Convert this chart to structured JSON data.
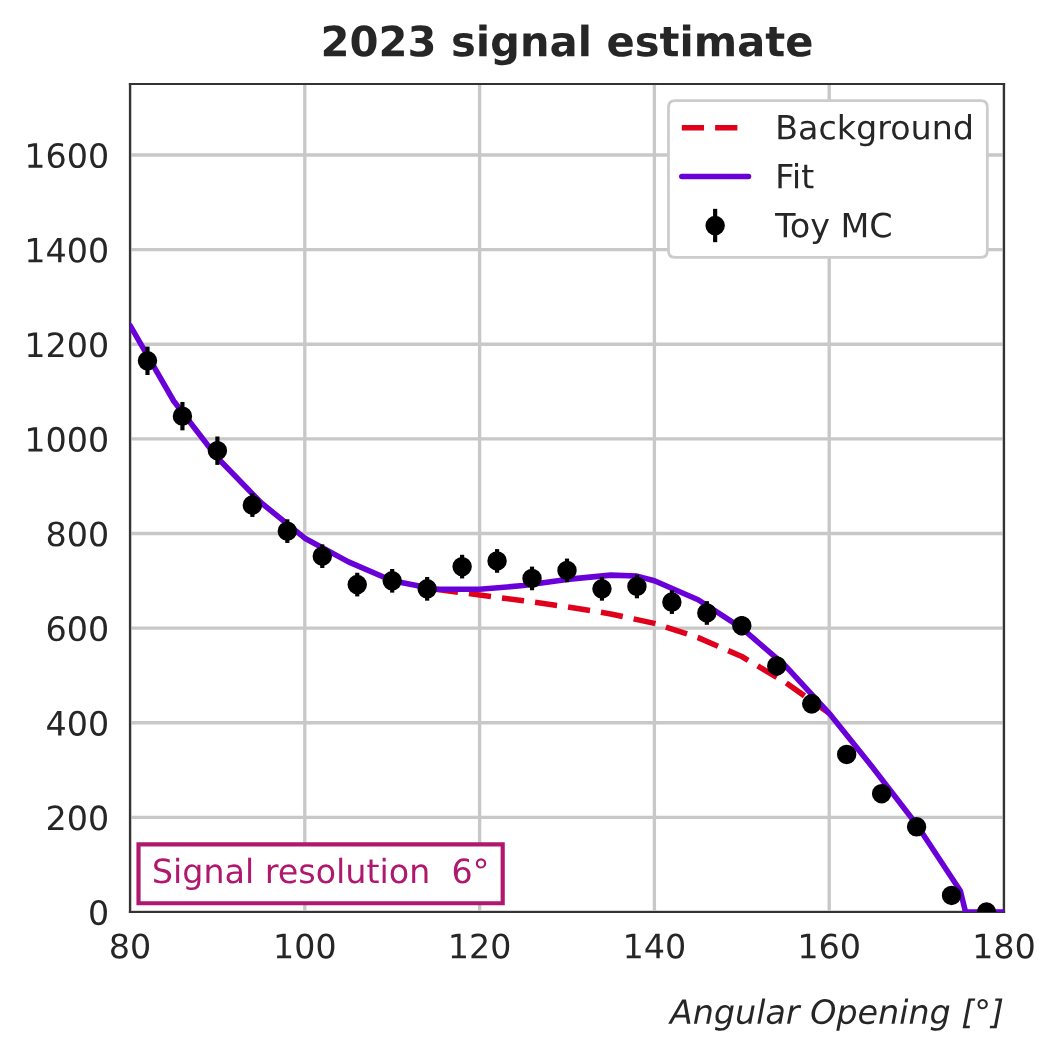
{
  "chart_data": {
    "type": "line",
    "title": "2023 signal estimate",
    "xlabel": "Angular Opening [°]",
    "annotations": [
      "Signal resolution  6°"
    ],
    "xlim": [
      80,
      180
    ],
    "xticks": [
      80,
      100,
      120,
      140,
      160,
      180
    ],
    "ylim": [
      0,
      1750
    ],
    "yticks": [
      0,
      200,
      400,
      600,
      800,
      1000,
      1200,
      1400,
      1600
    ],
    "grid": true,
    "legend": "top right",
    "series": [
      {
        "name": "Background",
        "line_style": "dashed",
        "color": "#e0001b",
        "x": [
          115,
          120,
          125,
          130,
          135,
          140,
          145,
          150,
          155,
          160
        ],
        "values": [
          682,
          670,
          658,
          645,
          630,
          610,
          580,
          540,
          485,
          420
        ]
      },
      {
        "name": "Fit",
        "line_style": "solid",
        "color": "#6a00d8",
        "x": [
          80,
          85,
          90,
          95,
          100,
          105,
          110,
          115,
          120,
          125,
          130,
          135,
          138,
          140,
          145,
          150,
          155,
          160,
          165,
          170,
          175,
          175.6,
          180
        ],
        "values": [
          1240,
          1080,
          960,
          865,
          790,
          740,
          700,
          682,
          682,
          690,
          703,
          712,
          710,
          700,
          660,
          600,
          520,
          420,
          305,
          185,
          45,
          0,
          0
        ]
      },
      {
        "name": "Toy MC",
        "type": "scatter",
        "marker": "circle",
        "color": "#000000",
        "x": [
          82,
          86,
          90,
          94,
          98,
          102,
          106,
          110,
          114,
          118,
          122,
          126,
          130,
          134,
          138,
          142,
          146,
          150,
          154,
          158,
          162,
          166,
          170,
          174,
          178
        ],
        "values": [
          1165,
          1048,
          975,
          860,
          805,
          752,
          692,
          700,
          683,
          730,
          742,
          705,
          722,
          683,
          688,
          655,
          632,
          605,
          520,
          440,
          333,
          250,
          180,
          35,
          0
        ],
        "errors": [
          30,
          30,
          30,
          25,
          25,
          25,
          25,
          25,
          25,
          25,
          25,
          25,
          25,
          25,
          25,
          25,
          25,
          20,
          20,
          20,
          15,
          15,
          15,
          10,
          5
        ]
      }
    ]
  }
}
